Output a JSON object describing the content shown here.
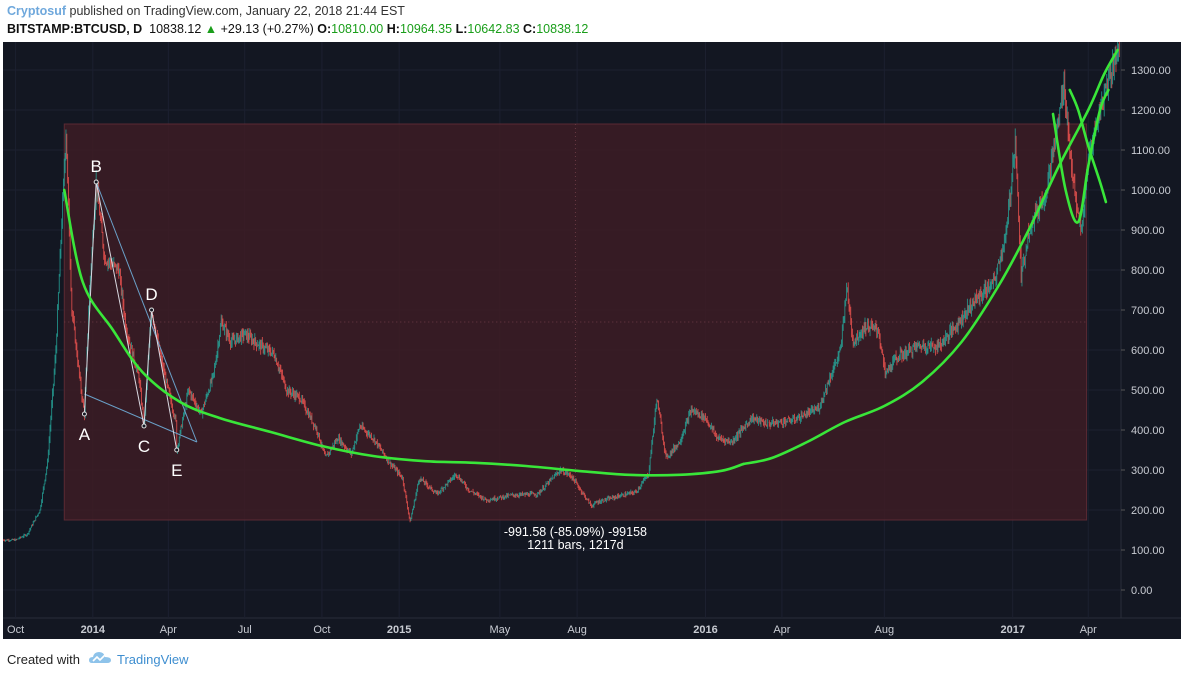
{
  "header": {
    "author": "Cryptosuf",
    "published": "published on TradingView.com, January 22, 2018 21:44 EST",
    "symbol": "BITSTAMP:BTCUSD, D",
    "last": "10838.12",
    "change_arrow": "▲",
    "change": "+29.13 (+0.27%)",
    "o_label": "O:",
    "o_value": "10810.00",
    "h_label": "H:",
    "h_value": "10964.35",
    "l_label": "L:",
    "l_value": "10642.83",
    "c_label": "C:",
    "c_value": "10838.12"
  },
  "footer": {
    "created_with": "Created with",
    "brand": "TradingView"
  },
  "colors": {
    "panel_bg": "#131722",
    "range_box": "#3d1c24",
    "curve": "#39e639",
    "candle_up": "#26a69a",
    "candle_down": "#ef5350",
    "axis_text": "#c8cbd2",
    "pattern_lines": "#6aa0c8"
  },
  "chart_data": {
    "type": "line",
    "title": "",
    "xlabel": "",
    "ylabel": "",
    "ylim": [
      -70,
      1370
    ],
    "y_ticks": [
      0,
      100,
      200,
      300,
      400,
      500,
      600,
      700,
      800,
      900,
      1000,
      1100,
      1200,
      1300
    ],
    "y_tick_labels": [
      "0.00",
      "100.00",
      "200.00",
      "300.00",
      "400.00",
      "500.00",
      "600.00",
      "700.00",
      "800.00",
      "900.00",
      "1000.00",
      "1100.00",
      "1200.00",
      "1300.00"
    ],
    "x_range": [
      "2013-09-16",
      "2017-05-10"
    ],
    "x_ticks": [
      {
        "date": "2013-10-01",
        "label": "Oct"
      },
      {
        "date": "2014-01-01",
        "label": "2014"
      },
      {
        "date": "2014-04-01",
        "label": "Apr"
      },
      {
        "date": "2014-07-01",
        "label": "Jul"
      },
      {
        "date": "2014-10-01",
        "label": "Oct"
      },
      {
        "date": "2015-01-01",
        "label": "2015"
      },
      {
        "date": "2015-05-01",
        "label": "May"
      },
      {
        "date": "2015-08-01",
        "label": "Aug"
      },
      {
        "date": "2016-01-01",
        "label": "2016"
      },
      {
        "date": "2016-04-01",
        "label": "Apr"
      },
      {
        "date": "2016-08-01",
        "label": "Aug"
      },
      {
        "date": "2017-01-01",
        "label": "2017"
      },
      {
        "date": "2017-04-01",
        "label": "Apr"
      }
    ],
    "price_series": [
      [
        "2013-09-16",
        125
      ],
      [
        "2013-10-01",
        125
      ],
      [
        "2013-10-15",
        140
      ],
      [
        "2013-10-30",
        200
      ],
      [
        "2013-11-08",
        320
      ],
      [
        "2013-11-18",
        600
      ],
      [
        "2013-11-30",
        1150
      ],
      [
        "2013-12-07",
        700
      ],
      [
        "2013-12-18",
        500
      ],
      [
        "2013-12-22",
        440
      ],
      [
        "2013-12-28",
        750
      ],
      [
        "2014-01-05",
        1020
      ],
      [
        "2014-01-15",
        830
      ],
      [
        "2014-02-01",
        800
      ],
      [
        "2014-02-10",
        650
      ],
      [
        "2014-02-25",
        530
      ],
      [
        "2014-03-03",
        410
      ],
      [
        "2014-03-12",
        700
      ],
      [
        "2014-03-25",
        560
      ],
      [
        "2014-04-10",
        420
      ],
      [
        "2014-04-11",
        350
      ],
      [
        "2014-04-25",
        500
      ],
      [
        "2014-05-10",
        440
      ],
      [
        "2014-05-25",
        540
      ],
      [
        "2014-06-03",
        670
      ],
      [
        "2014-06-15",
        620
      ],
      [
        "2014-07-01",
        640
      ],
      [
        "2014-07-20",
        610
      ],
      [
        "2014-08-05",
        590
      ],
      [
        "2014-08-20",
        500
      ],
      [
        "2014-09-05",
        480
      ],
      [
        "2014-09-25",
        400
      ],
      [
        "2014-10-05",
        330
      ],
      [
        "2014-10-20",
        380
      ],
      [
        "2014-11-05",
        340
      ],
      [
        "2014-11-15",
        410
      ],
      [
        "2014-12-01",
        380
      ],
      [
        "2014-12-20",
        320
      ],
      [
        "2015-01-05",
        280
      ],
      [
        "2015-01-14",
        170
      ],
      [
        "2015-01-25",
        280
      ],
      [
        "2015-02-15",
        240
      ],
      [
        "2015-03-10",
        290
      ],
      [
        "2015-03-25",
        250
      ],
      [
        "2015-04-15",
        225
      ],
      [
        "2015-05-15",
        237
      ],
      [
        "2015-06-15",
        240
      ],
      [
        "2015-07-12",
        300
      ],
      [
        "2015-07-25",
        285
      ],
      [
        "2015-08-18",
        210
      ],
      [
        "2015-08-25",
        220
      ],
      [
        "2015-09-20",
        235
      ],
      [
        "2015-10-10",
        245
      ],
      [
        "2015-10-25",
        290
      ],
      [
        "2015-11-04",
        480
      ],
      [
        "2015-11-15",
        330
      ],
      [
        "2015-12-01",
        370
      ],
      [
        "2015-12-15",
        450
      ],
      [
        "2016-01-01",
        430
      ],
      [
        "2016-01-15",
        380
      ],
      [
        "2016-02-01",
        370
      ],
      [
        "2016-02-25",
        430
      ],
      [
        "2016-03-15",
        415
      ],
      [
        "2016-04-15",
        425
      ],
      [
        "2016-05-15",
        455
      ],
      [
        "2016-05-28",
        530
      ],
      [
        "2016-06-10",
        600
      ],
      [
        "2016-06-17",
        760
      ],
      [
        "2016-06-25",
        620
      ],
      [
        "2016-07-10",
        660
      ],
      [
        "2016-07-25",
        650
      ],
      [
        "2016-08-02",
        540
      ],
      [
        "2016-08-15",
        580
      ],
      [
        "2016-09-10",
        610
      ],
      [
        "2016-10-05",
        610
      ],
      [
        "2016-10-25",
        660
      ],
      [
        "2016-11-15",
        720
      ],
      [
        "2016-12-10",
        770
      ],
      [
        "2016-12-25",
        900
      ],
      [
        "2017-01-04",
        1130
      ],
      [
        "2017-01-11",
        780
      ],
      [
        "2017-01-20",
        900
      ],
      [
        "2017-02-10",
        1000
      ],
      [
        "2017-02-25",
        1180
      ],
      [
        "2017-03-03",
        1270
      ],
      [
        "2017-03-10",
        1100
      ],
      [
        "2017-03-18",
        950
      ],
      [
        "2017-03-25",
        900
      ],
      [
        "2017-04-01",
        1080
      ],
      [
        "2017-04-15",
        1200
      ],
      [
        "2017-04-25",
        1280
      ],
      [
        "2017-05-08",
        1360
      ]
    ],
    "series": [
      {
        "values": [
          [
            "2013-11-28",
            1000
          ],
          [
            "2013-12-20",
            770
          ],
          [
            "2014-01-25",
            650
          ],
          [
            "2014-03-01",
            545
          ],
          [
            "2014-04-15",
            470
          ],
          [
            "2014-06-01",
            430
          ],
          [
            "2014-08-01",
            395
          ],
          [
            "2014-10-01",
            360
          ],
          [
            "2014-12-01",
            335
          ],
          [
            "2015-02-01",
            322
          ],
          [
            "2015-04-01",
            318
          ],
          [
            "2015-06-01",
            310
          ],
          [
            "2015-08-01",
            298
          ],
          [
            "2015-10-01",
            288
          ],
          [
            "2015-12-01",
            288
          ],
          [
            "2016-01-20",
            298
          ],
          [
            "2016-02-15",
            315
          ]
        ]
      },
      {
        "values": [
          [
            "2016-02-15",
            315
          ],
          [
            "2016-03-20",
            330
          ],
          [
            "2016-05-01",
            370
          ],
          [
            "2016-06-15",
            420
          ],
          [
            "2016-08-01",
            460
          ],
          [
            "2016-09-15",
            520
          ],
          [
            "2016-11-01",
            620
          ],
          [
            "2016-12-15",
            760
          ],
          [
            "2017-01-20",
            900
          ],
          [
            "2017-02-25",
            1060
          ],
          [
            "2017-04-01",
            1200
          ],
          [
            "2017-04-20",
            1290
          ],
          [
            "2017-05-06",
            1350
          ]
        ]
      },
      {
        "values": [
          [
            "2017-02-18",
            1190
          ],
          [
            "2017-03-05",
            1000
          ],
          [
            "2017-03-20",
            920
          ],
          [
            "2017-04-01",
            1060
          ],
          [
            "2017-04-15",
            1200
          ],
          [
            "2017-04-25",
            1250
          ]
        ]
      },
      {
        "values": [
          [
            "2017-03-10",
            1250
          ],
          [
            "2017-03-20",
            1200
          ],
          [
            "2017-04-01",
            1110
          ],
          [
            "2017-04-15",
            1020
          ],
          [
            "2017-04-22",
            970
          ]
        ]
      }
    ],
    "annotations": [
      {
        "label": "A",
        "date": "2013-12-22",
        "value": 440
      },
      {
        "label": "B",
        "date": "2014-01-05",
        "value": 1020
      },
      {
        "label": "C",
        "date": "2014-03-03",
        "value": 410
      },
      {
        "label": "D",
        "date": "2014-03-12",
        "value": 700
      },
      {
        "label": "E",
        "date": "2014-04-11",
        "value": 350
      }
    ],
    "triangle_lines": [
      [
        [
          "2014-01-05",
          1020
        ],
        [
          "2014-05-05",
          370
        ]
      ],
      [
        [
          "2013-12-22",
          490
        ],
        [
          "2014-05-05",
          370
        ]
      ]
    ],
    "measure_box": {
      "start_date": "2013-11-28",
      "end_date": "2017-03-30",
      "top": 1165,
      "bottom": 175,
      "line1": "-991.58 (-85.09%) -99158",
      "line2": "1211 bars, 1217d"
    }
  }
}
